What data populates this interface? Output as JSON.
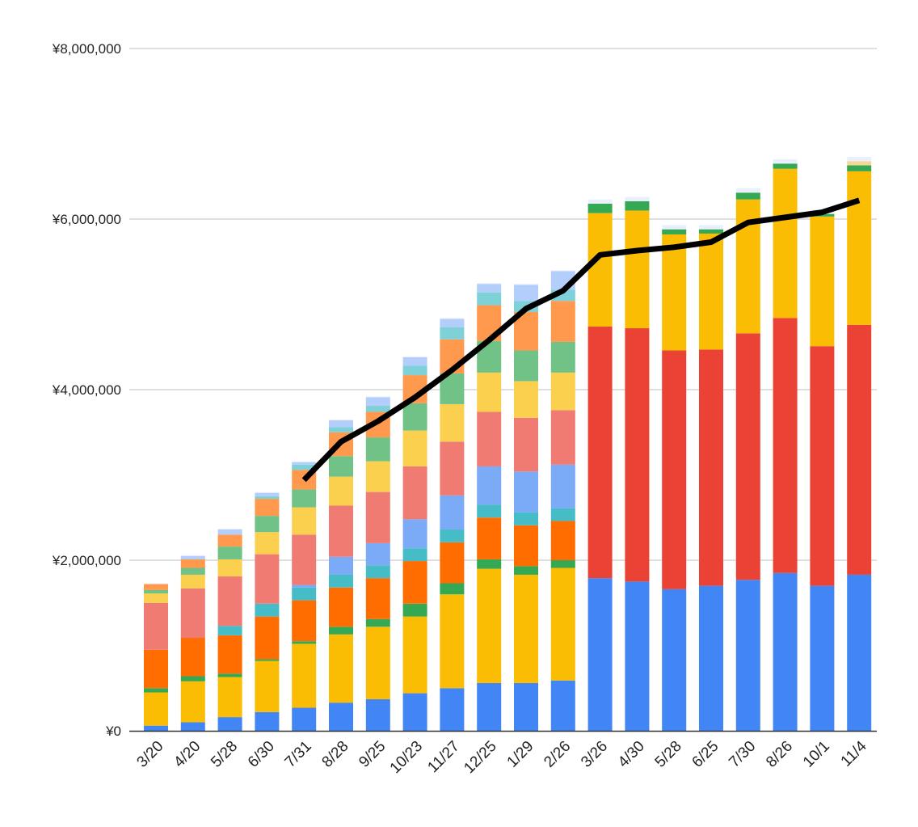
{
  "chart_data": {
    "type": "bar",
    "stacked": true,
    "title": "",
    "xlabel": "",
    "ylabel": "",
    "ylim": [
      0,
      8000000
    ],
    "yticks": [
      0,
      2000000,
      4000000,
      6000000,
      8000000
    ],
    "ytick_labels": [
      "¥0",
      "¥2,000,000",
      "¥4,000,000",
      "¥6,000,000",
      "¥8,000,000"
    ],
    "grid": true,
    "legend": "none",
    "categories": [
      "3/20",
      "4/20",
      "5/28",
      "6/30",
      "7/31",
      "8/28",
      "9/25",
      "10/23",
      "11/27",
      "12/25",
      "1/29",
      "2/26",
      "3/26",
      "4/30",
      "5/28",
      "6/25",
      "7/30",
      "8/26",
      "10/1",
      "11/4"
    ],
    "series": [
      {
        "color": "#4285f4",
        "values": [
          60000,
          100000,
          160000,
          220000,
          270000,
          330000,
          370000,
          440000,
          500000,
          560000,
          560000,
          590000,
          1790000,
          1750000,
          1660000,
          1700000,
          1770000,
          1850000,
          1700000,
          1830000
        ]
      },
      {
        "color": "#ea4335",
        "values": [
          0,
          0,
          0,
          0,
          0,
          0,
          0,
          0,
          0,
          0,
          0,
          0,
          2950000,
          2970000,
          2800000,
          2770000,
          2890000,
          2990000,
          2810000,
          2930000
        ]
      },
      {
        "color": "#fbbc04",
        "values": [
          390000,
          480000,
          470000,
          600000,
          750000,
          800000,
          850000,
          900000,
          1100000,
          1340000,
          1270000,
          1320000,
          1330000,
          1380000,
          1360000,
          1360000,
          1570000,
          1750000,
          1520000,
          1800000
        ]
      },
      {
        "color": "#34a853",
        "values": [
          50000,
          60000,
          40000,
          20000,
          30000,
          90000,
          90000,
          150000,
          130000,
          110000,
          100000,
          90000,
          110000,
          110000,
          60000,
          50000,
          80000,
          60000,
          30000,
          70000
        ]
      },
      {
        "color": "#ff6d01",
        "values": [
          450000,
          450000,
          450000,
          500000,
          480000,
          460000,
          480000,
          500000,
          480000,
          490000,
          480000,
          460000,
          0,
          0,
          0,
          0,
          0,
          0,
          0,
          0
        ]
      },
      {
        "color": "#46bdc6",
        "values": [
          0,
          0,
          110000,
          150000,
          150000,
          150000,
          150000,
          150000,
          150000,
          150000,
          150000,
          150000,
          0,
          0,
          0,
          0,
          0,
          0,
          0,
          0
        ]
      },
      {
        "color": "#7baaf7",
        "values": [
          0,
          0,
          0,
          0,
          30000,
          210000,
          260000,
          340000,
          400000,
          450000,
          480000,
          510000,
          0,
          0,
          0,
          0,
          0,
          0,
          0,
          0
        ]
      },
      {
        "color": "#f07b72",
        "values": [
          550000,
          580000,
          580000,
          580000,
          590000,
          600000,
          600000,
          620000,
          630000,
          640000,
          630000,
          640000,
          0,
          0,
          0,
          0,
          0,
          0,
          0,
          0
        ]
      },
      {
        "color": "#fcd04f",
        "values": [
          110000,
          160000,
          200000,
          260000,
          320000,
          340000,
          360000,
          420000,
          440000,
          460000,
          430000,
          440000,
          0,
          0,
          0,
          0,
          0,
          0,
          0,
          0
        ]
      },
      {
        "color": "#71c287",
        "values": [
          40000,
          80000,
          150000,
          190000,
          210000,
          240000,
          280000,
          320000,
          360000,
          370000,
          360000,
          360000,
          0,
          0,
          0,
          0,
          0,
          0,
          0,
          0
        ]
      },
      {
        "color": "#ff994d",
        "values": [
          70000,
          100000,
          140000,
          200000,
          230000,
          280000,
          300000,
          330000,
          400000,
          420000,
          450000,
          480000,
          0,
          0,
          0,
          0,
          0,
          0,
          0,
          0
        ]
      },
      {
        "color": "#7ed1d7",
        "values": [
          0,
          0,
          0,
          30000,
          60000,
          60000,
          70000,
          110000,
          140000,
          150000,
          130000,
          130000,
          0,
          0,
          0,
          0,
          0,
          0,
          0,
          0
        ]
      },
      {
        "color": "#b3cefb",
        "values": [
          0,
          40000,
          60000,
          40000,
          30000,
          80000,
          100000,
          100000,
          100000,
          100000,
          190000,
          220000,
          0,
          0,
          0,
          0,
          0,
          0,
          0,
          0
        ]
      },
      {
        "color": "#f4d796",
        "values": [
          0,
          0,
          0,
          0,
          0,
          0,
          0,
          0,
          0,
          0,
          0,
          0,
          0,
          0,
          0,
          0,
          0,
          0,
          0,
          50000
        ]
      },
      {
        "color": "#e8f0fe",
        "values": [
          10000,
          10000,
          10000,
          10000,
          10000,
          10000,
          10000,
          10000,
          10000,
          10000,
          10000,
          10000,
          50000,
          50000,
          50000,
          50000,
          50000,
          50000,
          50000,
          50000
        ]
      }
    ],
    "line_series": {
      "color": "#000000",
      "values": [
        null,
        null,
        null,
        null,
        2940000,
        3390000,
        3630000,
        3910000,
        4230000,
        4580000,
        4950000,
        5160000,
        5580000,
        5630000,
        5670000,
        5730000,
        5960000,
        6020000,
        6080000,
        6220000
      ]
    }
  }
}
